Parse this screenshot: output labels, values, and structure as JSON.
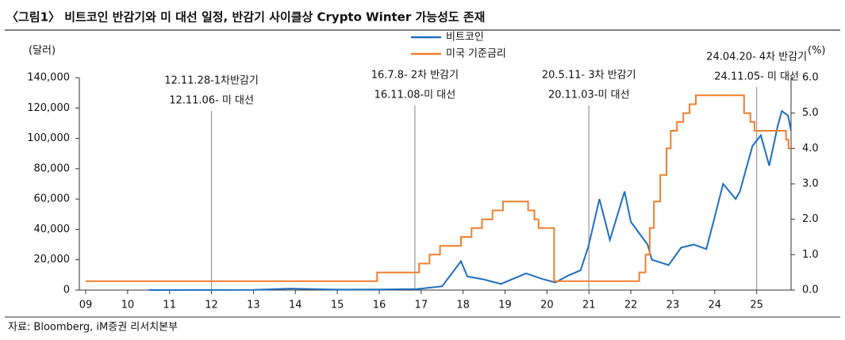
{
  "chart_data": {
    "type": "line",
    "title": "〈그림1〉 비트코인 반감기와 미 대선 일정, 반감기 사이클상 Crypto Winter 가능성도 존재",
    "source": "자료: Bloomberg, iM증권 리서치본부",
    "ylabel": "(달러)",
    "y2label": "(%)",
    "xlim": [
      2009,
      2025.82
    ],
    "xticks": [
      {
        "value": 2009,
        "label": "09"
      },
      {
        "value": 2010,
        "label": "10"
      },
      {
        "value": 2011,
        "label": "11"
      },
      {
        "value": 2012,
        "label": "12"
      },
      {
        "value": 2013,
        "label": "13"
      },
      {
        "value": 2014,
        "label": "14"
      },
      {
        "value": 2015,
        "label": "15"
      },
      {
        "value": 2016,
        "label": "16"
      },
      {
        "value": 2017,
        "label": "17"
      },
      {
        "value": 2018,
        "label": "18"
      },
      {
        "value": 2019,
        "label": "19"
      },
      {
        "value": 2020,
        "label": "20"
      },
      {
        "value": 2021,
        "label": "21"
      },
      {
        "value": 2022,
        "label": "22"
      },
      {
        "value": 2023,
        "label": "23"
      },
      {
        "value": 2024,
        "label": "24"
      },
      {
        "value": 2025,
        "label": "25"
      }
    ],
    "ylim": [
      0,
      140000
    ],
    "yticks": [
      0,
      {
        "value": 20000,
        "label": "20,000"
      },
      {
        "value": 40000,
        "label": "40,000"
      },
      {
        "value": 60000,
        "label": "60,000"
      },
      {
        "value": 80000,
        "label": "80,000"
      },
      {
        "value": 100000,
        "label": "100,000"
      },
      {
        "value": 120000,
        "label": "120,000"
      },
      {
        "value": 140000,
        "label": "140,000"
      }
    ],
    "y2lim": [
      0,
      6
    ],
    "y2ticks": [
      {
        "value": 0,
        "label": "0.0"
      },
      {
        "value": 1,
        "label": "1.0"
      },
      {
        "value": 2,
        "label": "2.0"
      },
      {
        "value": 3,
        "label": "3.0"
      },
      {
        "value": 4,
        "label": "4.0"
      },
      {
        "value": 5,
        "label": "5.0"
      },
      {
        "value": 6,
        "label": "6.0"
      }
    ],
    "series": [
      {
        "name": "비트코인",
        "color": "#1f6fbf",
        "x": [
          2010.5,
          2013,
          2013.9,
          2014.5,
          2015,
          2016,
          2016.9,
          2017.5,
          2017.95,
          2018.1,
          2018.5,
          2018.9,
          2019.5,
          2019.9,
          2020.2,
          2020.5,
          2020.8,
          2020.99,
          2021.25,
          2021.5,
          2021.85,
          2022.0,
          2022.4,
          2022.5,
          2022.9,
          2023.2,
          2023.5,
          2023.8,
          2023.95,
          2024.2,
          2024.5,
          2024.6,
          2024.9,
          2025.1,
          2025.3,
          2025.5,
          2025.6,
          2025.75,
          2025.82
        ],
        "values": [
          0,
          100,
          1000,
          600,
          300,
          400,
          700,
          2500,
          19000,
          9000,
          7000,
          4000,
          11000,
          7200,
          5000,
          9500,
          13000,
          29000,
          60000,
          33000,
          65000,
          45000,
          30000,
          20000,
          16500,
          28000,
          30000,
          27000,
          43000,
          70000,
          60000,
          65000,
          95000,
          102000,
          82000,
          108000,
          118000,
          115000,
          105000
        ]
      },
      {
        "name": "미국 기준금리",
        "color": "#f07f2e",
        "axis": "y2",
        "x": [
          2009,
          2015.95,
          2015.95,
          2016.95,
          2016.95,
          2017.2,
          2017.2,
          2017.45,
          2017.45,
          2017.95,
          2017.95,
          2018.2,
          2018.2,
          2018.45,
          2018.45,
          2018.7,
          2018.7,
          2018.95,
          2018.95,
          2019.55,
          2019.55,
          2019.7,
          2019.7,
          2019.8,
          2019.8,
          2020.17,
          2020.17,
          2022.2,
          2022.2,
          2022.35,
          2022.35,
          2022.45,
          2022.45,
          2022.55,
          2022.55,
          2022.7,
          2022.7,
          2022.85,
          2022.85,
          2022.95,
          2022.95,
          2023.1,
          2023.1,
          2023.25,
          2023.25,
          2023.4,
          2023.4,
          2023.55,
          2023.55,
          2024.7,
          2024.7,
          2024.85,
          2024.85,
          2024.95,
          2024.95,
          2025.7,
          2025.7,
          2025.76,
          2025.76,
          2025.82
        ],
        "values": [
          0.25,
          0.25,
          0.5,
          0.5,
          0.75,
          0.75,
          1.0,
          1.0,
          1.25,
          1.25,
          1.5,
          1.5,
          1.75,
          1.75,
          2.0,
          2.0,
          2.25,
          2.25,
          2.5,
          2.5,
          2.25,
          2.25,
          2.0,
          2.0,
          1.75,
          1.75,
          0.25,
          0.25,
          0.5,
          0.5,
          1.0,
          1.0,
          1.75,
          1.75,
          2.5,
          2.5,
          3.25,
          3.25,
          4.0,
          4.0,
          4.5,
          4.5,
          4.75,
          4.75,
          5.0,
          5.0,
          5.25,
          5.25,
          5.5,
          5.5,
          5.0,
          5.0,
          4.75,
          4.75,
          4.5,
          4.5,
          4.25,
          4.25,
          4.0,
          4.0
        ]
      }
    ],
    "annotations": [
      {
        "x": 2012.0,
        "lines": [
          "12.11.28-1차반감기",
          "12.11.06- 미 대선"
        ]
      },
      {
        "x": 2016.85,
        "lines": [
          "16.7.8- 2차 반감기",
          "16.11.08-미 대선"
        ]
      },
      {
        "x": 2021.0,
        "lines": [
          "20.5.11- 3차 반감기",
          "20.11.03-미 대선"
        ]
      },
      {
        "x": 2025.0,
        "lines": [
          "24.04.20- 4차 반감기",
          "24.11.05- 미 대선"
        ]
      }
    ]
  }
}
